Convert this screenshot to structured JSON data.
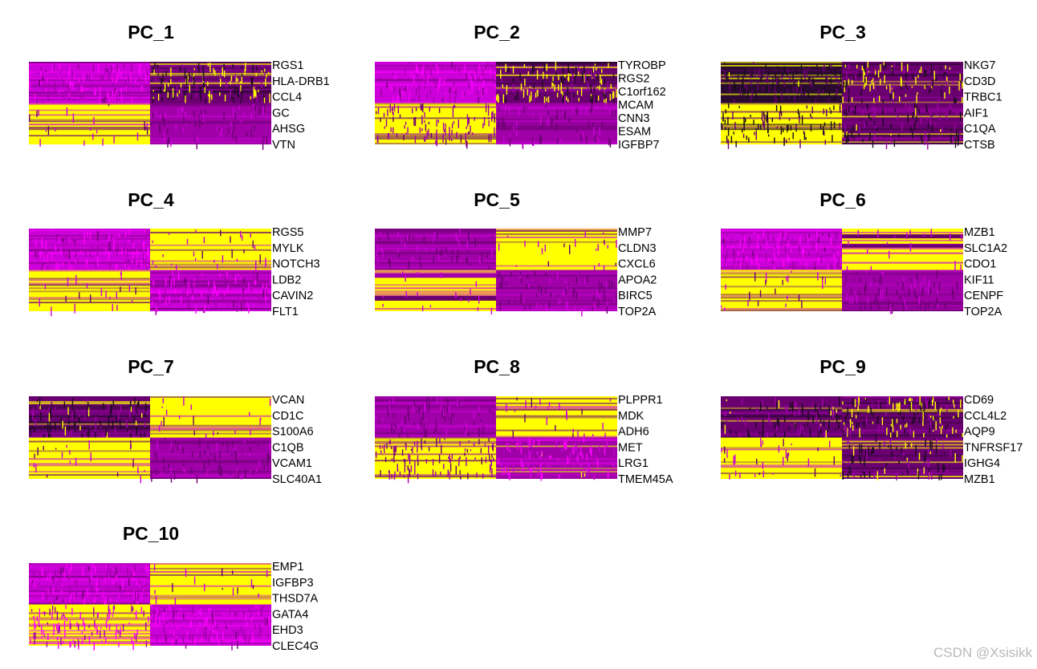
{
  "chart_data": {
    "type": "heatmap",
    "colors": {
      "low": "#1a0a1f",
      "mid_dark": "#6a0070",
      "mid": "#a000a8",
      "mid_bright": "#cc00d8",
      "high": "#ff00ff",
      "hot": "#ffff00"
    },
    "panels": [
      {
        "title": "PC_1",
        "genes": [
          "RGS1",
          "HLA-DRB1",
          "CCL4",
          "GC",
          "AHSG",
          "VTN"
        ],
        "blocks": {
          "top_left": "magenta",
          "top_right": "dark_yellow_mix",
          "bottom_left": "yellow",
          "bottom_right": "purple"
        }
      },
      {
        "title": "PC_2",
        "genes": [
          "TYROBP",
          "RGS2",
          "C1orf162",
          "MCAM",
          "CNN3",
          "ESAM",
          "IGFBP7"
        ],
        "blocks": {
          "top_left": "magenta",
          "top_right": "dark_yellow_mix",
          "bottom_left": "yellow_purple_mix",
          "bottom_right": "purple"
        }
      },
      {
        "title": "PC_3",
        "genes": [
          "NKG7",
          "CD3D",
          "TRBC1",
          "AIF1",
          "C1QA",
          "CTSB"
        ],
        "blocks": {
          "top_left": "dark",
          "top_right": "dark_yellow_mix",
          "bottom_left": "yellow_dark_mix",
          "bottom_right": "dark_purple"
        }
      },
      {
        "title": "PC_4",
        "genes": [
          "RGS5",
          "MYLK",
          "NOTCH3",
          "LDB2",
          "CAVIN2",
          "FLT1"
        ],
        "blocks": {
          "top_left": "magenta",
          "top_right": "yellow",
          "bottom_left": "yellow",
          "bottom_right": "magenta"
        }
      },
      {
        "title": "PC_5",
        "genes": [
          "MMP7",
          "CLDN3",
          "CXCL6",
          "APOA2",
          "BIRC5",
          "TOP2A"
        ],
        "blocks": {
          "top_left": "purple",
          "top_right": "yellow",
          "bottom_left": "yellow_striped",
          "bottom_right": "purple"
        }
      },
      {
        "title": "PC_6",
        "genes": [
          "MZB1",
          "SLC1A2",
          "CDO1",
          "KIF11",
          "CENPF",
          "TOP2A"
        ],
        "blocks": {
          "top_left": "magenta",
          "top_right": "yellow_striped",
          "bottom_left": "yellow",
          "bottom_right": "purple"
        }
      },
      {
        "title": "PC_7",
        "genes": [
          "VCAN",
          "CD1C",
          "S100A6",
          "C1QB",
          "VCAM1",
          "SLC40A1"
        ],
        "blocks": {
          "top_left": "dark_purple",
          "top_right": "yellow",
          "bottom_left": "yellow",
          "bottom_right": "purple"
        }
      },
      {
        "title": "PC_8",
        "genes": [
          "PLPPR1",
          "MDK",
          "ADH6",
          "MET",
          "LRG1",
          "TMEM45A"
        ],
        "blocks": {
          "top_left": "purple",
          "top_right": "yellow",
          "bottom_left": "yellow_purple_mix",
          "bottom_right": "magenta_purple"
        }
      },
      {
        "title": "PC_9",
        "genes": [
          "CD69",
          "CCL4L2",
          "AQP9",
          "TNFRSF17",
          "IGHG4",
          "MZB1"
        ],
        "blocks": {
          "top_left": "dark_purple",
          "top_right": "dark_yellow_mix",
          "bottom_left": "yellow",
          "bottom_right": "dark_purple"
        }
      },
      {
        "title": "PC_10",
        "genes": [
          "EMP1",
          "IGFBP3",
          "THSD7A",
          "GATA4",
          "EHD3",
          "CLEC4G"
        ],
        "blocks": {
          "top_left": "magenta",
          "top_right": "yellow",
          "bottom_left": "yellow_magenta_mix",
          "bottom_right": "magenta"
        }
      }
    ]
  },
  "watermark": "CSDN @Xsisikk"
}
